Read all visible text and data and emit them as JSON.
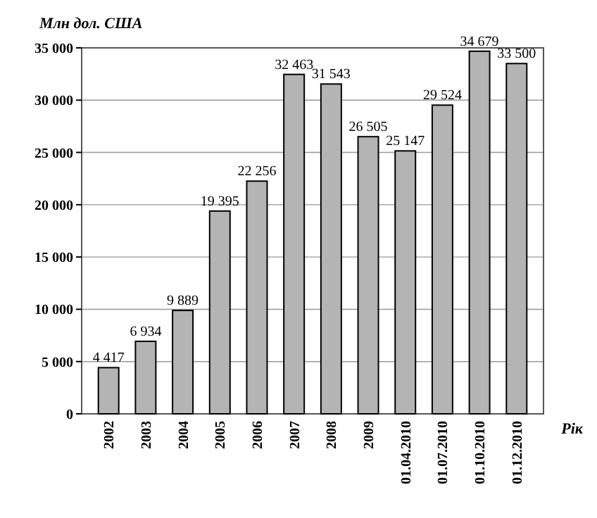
{
  "chart_data": {
    "type": "bar",
    "ylabel": "Млн дол. США",
    "xlabel": "Рік",
    "categories": [
      "2002",
      "2003",
      "2004",
      "2005",
      "2006",
      "2007",
      "2008",
      "2009",
      "01.04.2010",
      "01.07.2010",
      "01.10.2010",
      "01.12.2010"
    ],
    "values": [
      4417,
      6934,
      9889,
      19395,
      22256,
      32463,
      31543,
      26505,
      25147,
      29524,
      34679,
      33500
    ],
    "value_labels": [
      "4 417",
      "6 934",
      "9 889",
      "19 395",
      "22 256",
      "32 463",
      "31 543",
      "26 505",
      "25 147",
      "29 524",
      "34 679",
      "33 500"
    ],
    "color": "#b4b4b4",
    "ylim": [
      0,
      35000
    ],
    "yticks": [
      {
        "value": 0,
        "label": "0"
      },
      {
        "value": 5000,
        "label": "5 000"
      },
      {
        "value": 10000,
        "label": "10 000"
      },
      {
        "value": 15000,
        "label": "15 000"
      },
      {
        "value": 20000,
        "label": "20 000"
      },
      {
        "value": 25000,
        "label": "25 000"
      },
      {
        "value": 30000,
        "label": "30 000"
      },
      {
        "value": 35000,
        "label": "35 000"
      }
    ],
    "grid": "y"
  }
}
